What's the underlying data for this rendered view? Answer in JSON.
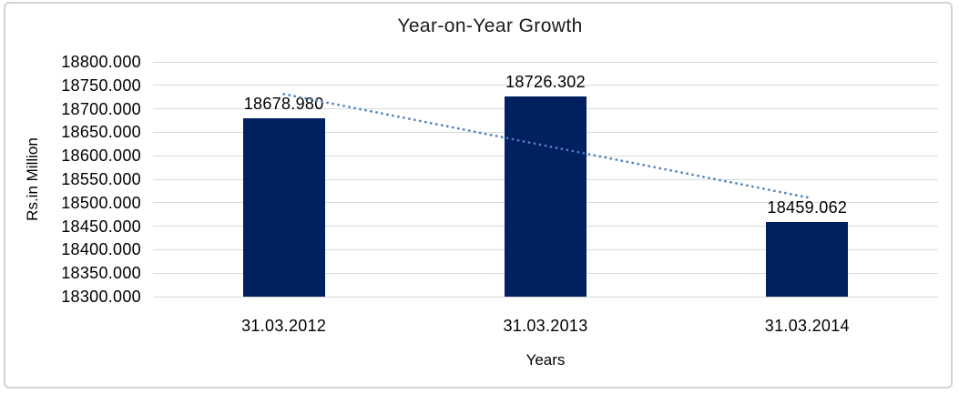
{
  "frame": {
    "border_color": "#d3d3d3",
    "background_color": "#ffffff"
  },
  "chart_data": {
    "type": "bar",
    "title": "Year-on-Year Growth",
    "xlabel": "Years",
    "ylabel": "Rs.in Million",
    "categories": [
      "31.03.2012",
      "31.03.2013",
      "31.03.2014"
    ],
    "values": [
      18678.98,
      18726.302,
      18459.062
    ],
    "data_labels": [
      "18678.980",
      "18726.302",
      "18459.062"
    ],
    "ylim": [
      18300,
      18800
    ],
    "ytick_step": 50,
    "yticks": [
      "18300.000",
      "18350.000",
      "18400.000",
      "18450.000",
      "18500.000",
      "18550.000",
      "18600.000",
      "18650.000",
      "18700.000",
      "18750.000",
      "18800.000"
    ],
    "grid": true,
    "legend": false,
    "bar_color": "#002060",
    "gridline_color": "#d9d9d9",
    "text_color": "#000000",
    "trendline": {
      "type": "linear",
      "style": "dotted",
      "color": "#4f81bd"
    }
  }
}
